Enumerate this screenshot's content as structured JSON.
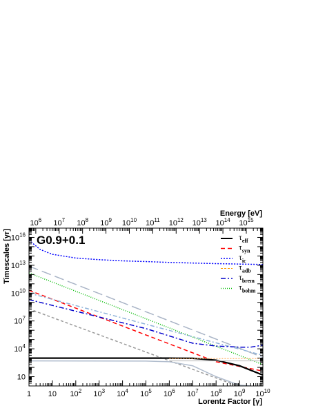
{
  "chart_data": {
    "type": "line",
    "title": "G0.9+0.1",
    "xlabel": "Lorentz Factor [γ]",
    "ylabel": "Timescales [yr]",
    "top_xlabel": "Energy [eV]",
    "x_scale": "log",
    "y_scale": "log",
    "xlim": [
      1,
      10000000000
    ],
    "ylim": [
      1,
      100000000000000000
    ],
    "top_xlim_eV": [
      511000,
      5110000000000000
    ],
    "x_ticks": [
      {
        "value": 1,
        "base": "1",
        "exp": ""
      },
      {
        "value": 10,
        "base": "10",
        "exp": ""
      },
      {
        "value": 100,
        "base": "10",
        "exp": "2"
      },
      {
        "value": 1000,
        "base": "10",
        "exp": "3"
      },
      {
        "value": 10000,
        "base": "10",
        "exp": "4"
      },
      {
        "value": 100000,
        "base": "10",
        "exp": "5"
      },
      {
        "value": 1000000,
        "base": "10",
        "exp": "6"
      },
      {
        "value": 10000000,
        "base": "10",
        "exp": "7"
      },
      {
        "value": 100000000,
        "base": "10",
        "exp": "8"
      },
      {
        "value": 1000000000,
        "base": "10",
        "exp": "9"
      },
      {
        "value": 10000000000,
        "base": "10",
        "exp": "10"
      }
    ],
    "y_ticks": [
      {
        "value": 10,
        "base": "10",
        "exp": ""
      },
      {
        "value": 10000,
        "base": "10",
        "exp": "4"
      },
      {
        "value": 10000000,
        "base": "10",
        "exp": "7"
      },
      {
        "value": 10000000000,
        "base": "10",
        "exp": "10"
      },
      {
        "value": 10000000000000,
        "base": "10",
        "exp": "13"
      },
      {
        "value": 10000000000000000,
        "base": "10",
        "exp": "16"
      }
    ],
    "top_ticks": [
      {
        "value": 1000000,
        "base": "10",
        "exp": "6"
      },
      {
        "value": 10000000,
        "base": "10",
        "exp": "7"
      },
      {
        "value": 100000000,
        "base": "10",
        "exp": "8"
      },
      {
        "value": 1000000000,
        "base": "10",
        "exp": "9"
      },
      {
        "value": 10000000000,
        "base": "10",
        "exp": "10"
      },
      {
        "value": 100000000000,
        "base": "10",
        "exp": "11"
      },
      {
        "value": 1000000000000,
        "base": "10",
        "exp": "12"
      },
      {
        "value": 10000000000000,
        "base": "10",
        "exp": "13"
      },
      {
        "value": 100000000000000,
        "base": "10",
        "exp": "14"
      },
      {
        "value": 1000000000000000,
        "base": "10",
        "exp": "15"
      }
    ],
    "legend": {
      "placement": "top-right",
      "entries": [
        {
          "symbol": "τ",
          "sub": "eff",
          "color": "#000000",
          "dash": "",
          "width": 2
        },
        {
          "symbol": "τ",
          "sub": "syn",
          "color": "#ff0000",
          "dash": "6,4",
          "width": 1.5
        },
        {
          "symbol": "τ",
          "sub": "ic",
          "color": "#0000ff",
          "dash": "2,2",
          "width": 1.5
        },
        {
          "symbol": "τ",
          "sub": "adb",
          "color": "#ff9900",
          "dash": "3,2",
          "width": 1
        },
        {
          "symbol": "τ",
          "sub": "brem",
          "color": "#0000cc",
          "dash": "7,3,2,3",
          "width": 1.5
        },
        {
          "symbol": "τ",
          "sub": "bohm",
          "color": "#00bb00",
          "dash": "1,2",
          "width": 1.5
        }
      ]
    },
    "series": [
      {
        "key": "gray_long_dash",
        "color": "#a9b4c6",
        "dash": "14,6",
        "width": 1.5,
        "x": [
          1,
          10000000000
        ],
        "y": [
          8000000000000,
          1200
        ]
      },
      {
        "key": "green_dotted",
        "color": "#00bb00",
        "dash": "1,2",
        "width": 1.5,
        "x": [
          1,
          10000000000
        ],
        "y": [
          1500000000000,
          200
        ]
      },
      {
        "key": "red_dashed",
        "color": "#ff0000",
        "dash": "6,4",
        "width": 1.5,
        "x": [
          1,
          100000000,
          10000000000
        ],
        "y": [
          20000000000,
          400,
          40
        ]
      },
      {
        "key": "lightblue_dashdot",
        "color": "#8fb3d9",
        "dash": "6,3,2,3",
        "width": 1.5,
        "x": [
          1,
          10000000000
        ],
        "y": [
          10000000000,
          2000
        ]
      },
      {
        "key": "blue_dashdot",
        "color": "#0000cc",
        "dash": "7,3,2,3",
        "width": 1.5,
        "x": [
          1,
          100000,
          10000000,
          100000000,
          1000000000,
          3000000000,
          10000000000
        ],
        "y": [
          2000000000,
          1500000,
          40000,
          20000,
          15000,
          15000,
          25000
        ]
      },
      {
        "key": "gray_dashed",
        "color": "#999999",
        "dash": "4,3",
        "width": 1.5,
        "x": [
          1,
          10000000000
        ],
        "y": [
          200000000,
          0.1
        ]
      },
      {
        "key": "blue_dotted_ic",
        "color": "#0000ff",
        "dash": "2,2",
        "width": 1.5,
        "x": [
          1,
          3,
          10,
          100,
          1000,
          10000,
          100000,
          1000000,
          100000000,
          10000000000
        ],
        "y": [
          5000000000000000,
          500000000000000,
          150000000000000,
          60000000000000,
          40000000000000,
          30000000000000,
          25000000000000,
          20000000000000,
          15000000000000,
          12000000000000
        ]
      },
      {
        "key": "tau_eff",
        "color": "#000000",
        "dash": "",
        "width": 2.2,
        "x": [
          1,
          1000000,
          10000000,
          100000000,
          1000000000,
          10000000000
        ],
        "y": [
          1000,
          1000,
          950,
          600,
          150,
          15
        ]
      },
      {
        "key": "ic_light",
        "color": "#b0bccd",
        "dash": "",
        "width": 1.5,
        "x": [
          1,
          100000,
          1000000,
          10000000,
          100000000,
          1000000000,
          3000000000
        ],
        "y": [
          500,
          480,
          400,
          150,
          10,
          1.2,
          1
        ]
      },
      {
        "key": "flat_orange",
        "color": "#ffaa55",
        "dash": "2,2",
        "width": 1,
        "x": [
          1000000,
          10000000000
        ],
        "y": [
          900,
          900
        ]
      },
      {
        "key": "flat_gray",
        "color": "#bbbbbb",
        "dash": "",
        "width": 1,
        "x": [
          1000000,
          10000000000
        ],
        "y": [
          500,
          500
        ]
      }
    ]
  }
}
